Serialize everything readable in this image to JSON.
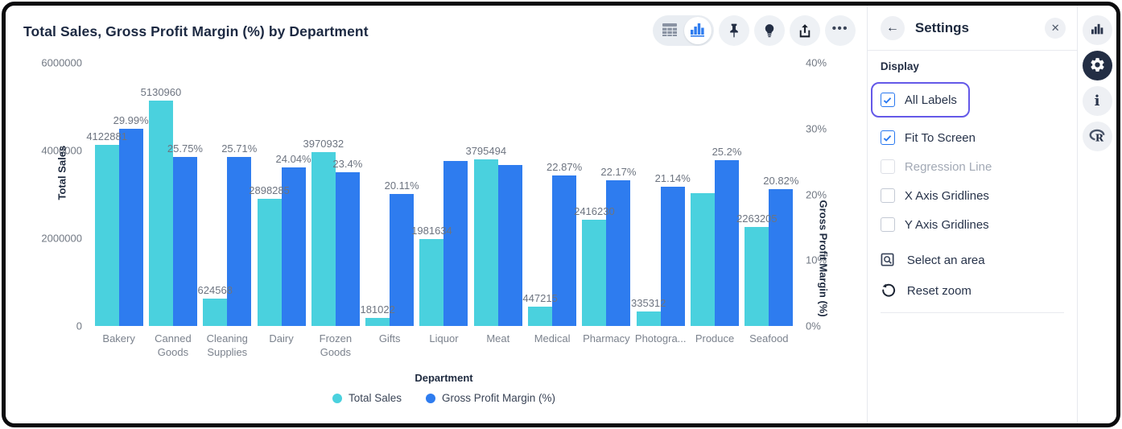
{
  "chart": {
    "title": "Total Sales, Gross Profit Margin (%) by Department"
  },
  "toolbar": {
    "icons": [
      "table-view",
      "chart-view",
      "pin",
      "lightbulb",
      "export",
      "more-options"
    ]
  },
  "chart_data": {
    "type": "bar",
    "title": "Total Sales, Gross Profit Margin (%) by Department",
    "categories": [
      "Bakery",
      "Canned Goods",
      "Cleaning Supplies",
      "Dairy",
      "Frozen Goods",
      "Gifts",
      "Liquor",
      "Meat",
      "Medical",
      "Pharmacy",
      "Photogra...",
      "Produce",
      "Seafood"
    ],
    "series": [
      {
        "name": "Total Sales",
        "axis": "left",
        "color": "#4AD1DE",
        "values": [
          4122881,
          5130960,
          624568,
          2898285,
          3970932,
          181022,
          1981634,
          3795494,
          447215,
          2416230,
          335312,
          3030000,
          2263205
        ],
        "labels": [
          "4122881",
          "5130960",
          "624568",
          "2898285",
          "3970932",
          "181022",
          "1981634",
          "3795494",
          "447215",
          "2416230",
          "335312",
          "",
          "2263205"
        ]
      },
      {
        "name": "Gross Profit Margin (%)",
        "axis": "right",
        "color": "#2E7CEF",
        "values": [
          29.99,
          25.75,
          25.71,
          24.04,
          23.4,
          20.11,
          25.1,
          24.5,
          22.87,
          22.17,
          21.14,
          25.2,
          20.82
        ],
        "labels": [
          "29.99%",
          "25.75%",
          "25.71%",
          "24.04%",
          "23.4%",
          "20.11%",
          "",
          "",
          "22.87%",
          "22.17%",
          "21.14%",
          "25.2%",
          "20.82%"
        ]
      }
    ],
    "xlabel": "Department",
    "ylabel_left": "Total Sales",
    "ylabel_right": "Gross Profit Margin (%)",
    "y_left_ticks": [
      "6000000",
      "4000000",
      "2000000",
      "0"
    ],
    "y_left_max": 6000000,
    "y_right_ticks": [
      "40%",
      "30%",
      "20%",
      "10%",
      "0%"
    ],
    "y_right_max": 40,
    "gridlines": false,
    "legend_position": "bottom"
  },
  "settings_panel": {
    "title": "Settings",
    "section": "Display",
    "checkboxes": [
      {
        "label": "All Labels",
        "checked": true,
        "focused": true,
        "disabled": false
      },
      {
        "label": "Fit To Screen",
        "checked": true,
        "focused": false,
        "disabled": false
      },
      {
        "label": "Regression Line",
        "checked": false,
        "focused": false,
        "disabled": true
      },
      {
        "label": "X Axis Gridlines",
        "checked": false,
        "focused": false,
        "disabled": false
      },
      {
        "label": "Y Axis Gridlines",
        "checked": false,
        "focused": false,
        "disabled": false
      }
    ],
    "actions": [
      {
        "label": "Select an area",
        "icon": "select-area-icon"
      },
      {
        "label": "Reset zoom",
        "icon": "reset-zoom-icon"
      }
    ]
  },
  "icon_rail": {
    "items": [
      "chart-icon",
      "gear-icon",
      "info-icon",
      "r-logo-icon"
    ],
    "active": "gear-icon"
  },
  "colors": {
    "series_total_sales": "#4AD1DE",
    "series_gpm": "#2E7CEF",
    "checkbox_accent": "#2878f0",
    "focus_ring": "#6459e8",
    "icon_dark": "#232e44"
  }
}
